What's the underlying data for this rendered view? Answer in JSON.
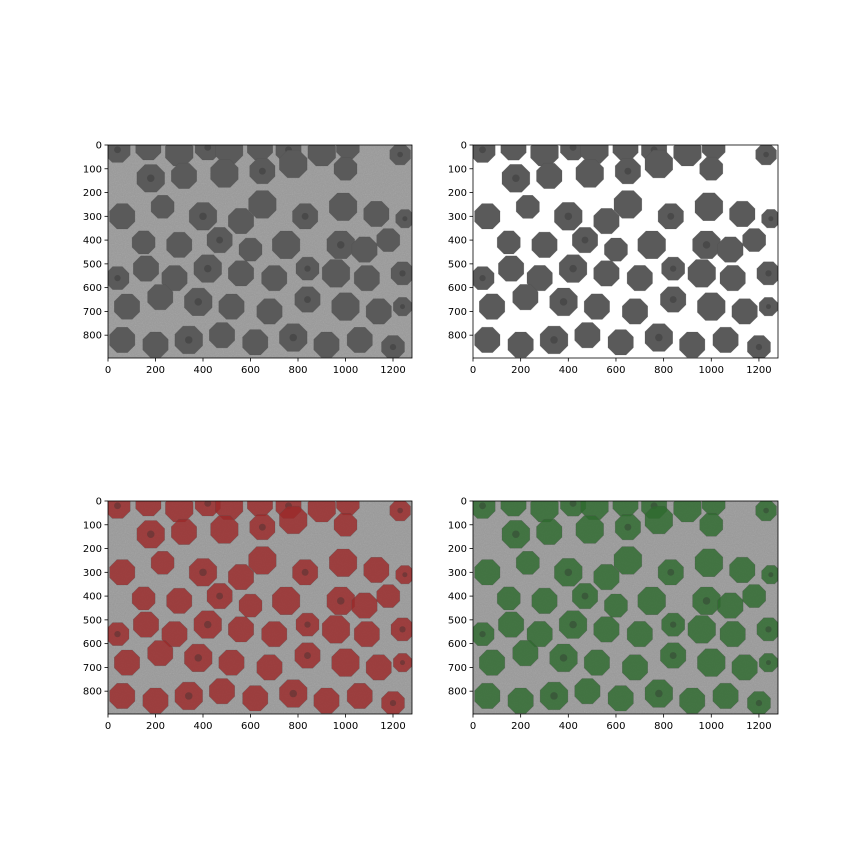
{
  "figure": {
    "panels": [
      {
        "id": "original",
        "overlay_color": "",
        "background_white": false
      },
      {
        "id": "mask",
        "overlay_color": "",
        "background_white": true
      },
      {
        "id": "red-overlay",
        "overlay_color": "#9b2a2a",
        "background_white": false
      },
      {
        "id": "green-overlay",
        "overlay_color": "#2e6a2e",
        "background_white": false
      }
    ],
    "x_ticks": [
      "0",
      "200",
      "400",
      "600",
      "800",
      "1000",
      "1200"
    ],
    "y_ticks": [
      "0",
      "100",
      "200",
      "300",
      "400",
      "500",
      "600",
      "700",
      "800"
    ],
    "x_range": [
      0,
      1280
    ],
    "y_range": [
      0,
      896
    ],
    "colors": {
      "background_gray": "#9a9a9a",
      "grain_gray": "#5a5a5a",
      "red_overlay": "#9b2a2a",
      "green_overlay": "#2e6a2e"
    }
  }
}
